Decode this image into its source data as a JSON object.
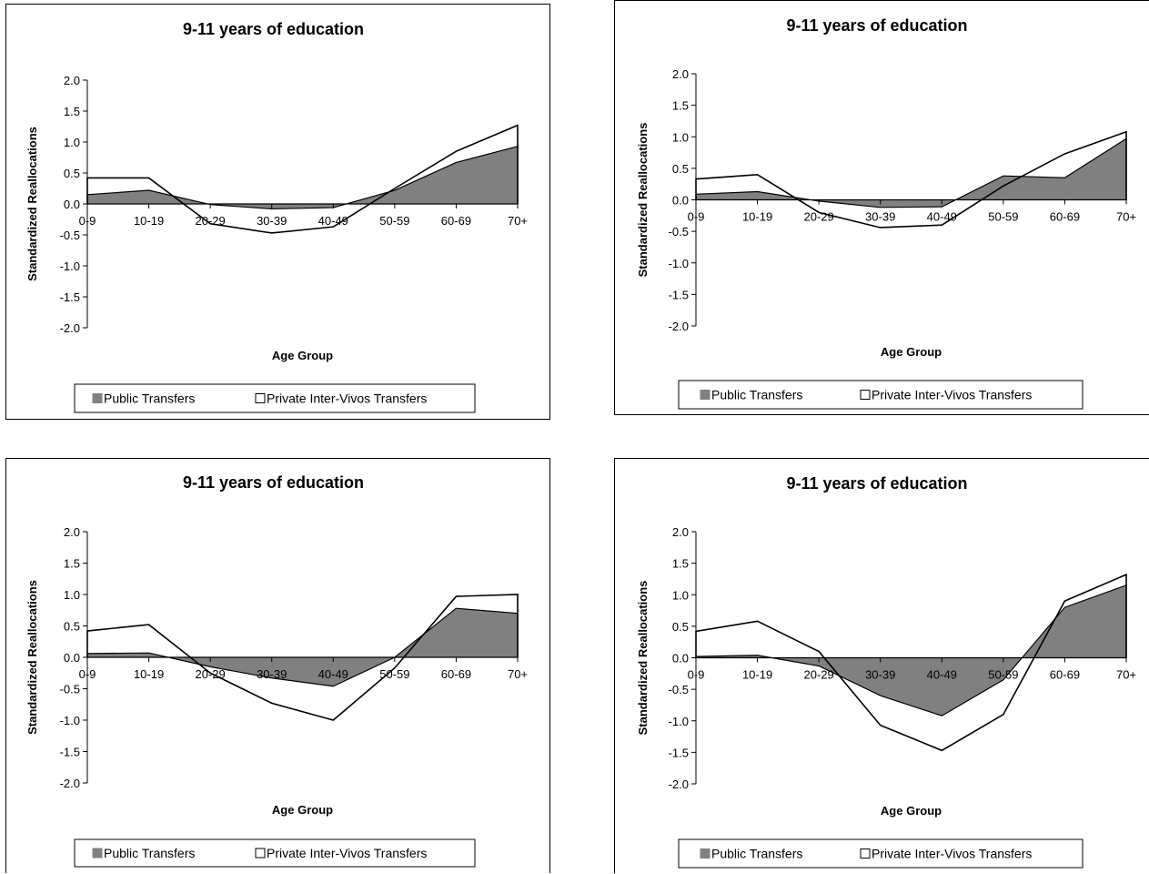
{
  "chart_data": [
    {
      "type": "area",
      "title": "9-11 years of education",
      "xlabel": "Age Group",
      "ylabel": "Standardized Reallocations",
      "categories": [
        "0-9",
        "10-19",
        "20-29",
        "30-39",
        "40-49",
        "50-59",
        "60-69",
        "70+"
      ],
      "yticks": [
        "2.0",
        "1.5",
        "1.0",
        "0.5",
        "0.0",
        "-0.5",
        "-1.0",
        "-1.5",
        "-2.0"
      ],
      "ylim": [
        -2,
        2
      ],
      "legend": "bottom",
      "series": [
        {
          "name": "Public Transfers",
          "type": "area",
          "color": "#808080",
          "values": [
            0.15,
            0.22,
            -0.01,
            -0.08,
            -0.06,
            0.22,
            0.67,
            0.93
          ]
        },
        {
          "name": "Private Inter-Vivos Transfers",
          "type": "line",
          "color": "#000000",
          "values": [
            0.42,
            0.42,
            -0.32,
            -0.47,
            -0.37,
            0.25,
            0.85,
            1.27
          ]
        }
      ]
    },
    {
      "type": "area",
      "title": "9-11 years of education",
      "xlabel": "Age Group",
      "ylabel": "Standardized Reallocations",
      "categories": [
        "0-9",
        "10-19",
        "20-29",
        "30-39",
        "40-49",
        "50-59",
        "60-69",
        "70+"
      ],
      "yticks": [
        "2.0",
        "1.5",
        "1.0",
        "0.5",
        "0.0",
        "-0.5",
        "-1.0",
        "-1.5",
        "-2.0"
      ],
      "ylim": [
        -2,
        2
      ],
      "legend": "bottom",
      "series": [
        {
          "name": "Public Transfers",
          "type": "area",
          "color": "#808080",
          "values": [
            0.09,
            0.13,
            -0.02,
            -0.12,
            -0.11,
            0.38,
            0.35,
            0.97
          ]
        },
        {
          "name": "Private Inter-Vivos Transfers",
          "type": "line",
          "color": "#000000",
          "values": [
            0.33,
            0.4,
            -0.2,
            -0.44,
            -0.4,
            0.22,
            0.73,
            1.08
          ]
        }
      ]
    },
    {
      "type": "area",
      "title": "9-11 years of education",
      "xlabel": "Age Group",
      "ylabel": "Standardized Reallocations",
      "categories": [
        "0-9",
        "10-19",
        "20-29",
        "30-39",
        "40-49",
        "50-59",
        "60-69",
        "70+"
      ],
      "yticks": [
        "2.0",
        "1.5",
        "1.0",
        "0.5",
        "0.0",
        "-0.5",
        "-1.0",
        "-1.5",
        "-2.0"
      ],
      "ylim": [
        -2,
        2
      ],
      "legend": "bottom",
      "series": [
        {
          "name": "Public Transfers",
          "type": "area",
          "color": "#808080",
          "values": [
            0.06,
            0.07,
            -0.15,
            -0.33,
            -0.46,
            0.0,
            0.78,
            0.7
          ]
        },
        {
          "name": "Private Inter-Vivos Transfers",
          "type": "line",
          "color": "#000000",
          "values": [
            0.42,
            0.52,
            -0.25,
            -0.73,
            -1.0,
            -0.17,
            0.97,
            1.0
          ]
        }
      ]
    },
    {
      "type": "area",
      "title": "9-11 years of education",
      "xlabel": "Age Group",
      "ylabel": "Standardized Reallocations",
      "categories": [
        "0-9",
        "10-19",
        "20-29",
        "30-39",
        "40-49",
        "50-59",
        "60-69",
        "70+"
      ],
      "yticks": [
        "2.0",
        "1.5",
        "1.0",
        "0.5",
        "0.0",
        "-0.5",
        "-1.0",
        "-1.5",
        "-2.0"
      ],
      "ylim": [
        -2,
        2
      ],
      "legend": "bottom",
      "series": [
        {
          "name": "Public Transfers",
          "type": "area",
          "color": "#808080",
          "values": [
            0.02,
            0.04,
            -0.13,
            -0.6,
            -0.92,
            -0.35,
            0.8,
            1.15
          ]
        },
        {
          "name": "Private Inter-Vivos Transfers",
          "type": "line",
          "color": "#000000",
          "values": [
            0.42,
            0.58,
            0.1,
            -1.07,
            -1.47,
            -0.9,
            0.9,
            1.32
          ]
        }
      ]
    }
  ]
}
